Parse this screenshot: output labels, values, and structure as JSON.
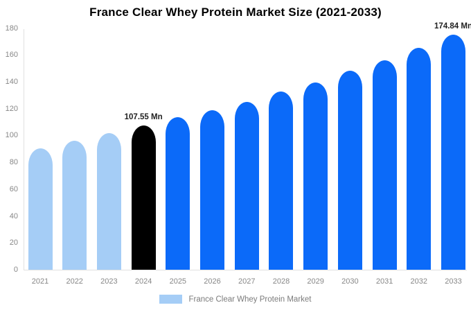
{
  "title": "France Clear Whey Protein Market Size (2021-2033)",
  "legend": {
    "label": "France Clear Whey Protein Market",
    "swatch_color": "#a5cdf6"
  },
  "colors": {
    "historical_bar": "#a5cdf6",
    "highlight_bar": "#000000",
    "forecast_bar": "#0b6af9",
    "axis_line": "#e0e0e0",
    "tick_text": "#878787",
    "annotation_text": "#1f1f1f"
  },
  "chart_data": {
    "type": "bar",
    "title": "France Clear Whey Protein Market Size (2021-2033)",
    "categories": [
      "2021",
      "2022",
      "2023",
      "2024",
      "2025",
      "2026",
      "2027",
      "2028",
      "2029",
      "2030",
      "2031",
      "2032",
      "2033"
    ],
    "series": [
      {
        "name": "France Clear Whey Protein Market",
        "unit": "Mn",
        "values": [
          90.5,
          96,
          101.5,
          107.55,
          113.5,
          119,
          125,
          132.5,
          139.5,
          148,
          156,
          165.5,
          174.84
        ]
      }
    ],
    "bar_colors": [
      "#a5cdf6",
      "#a5cdf6",
      "#a5cdf6",
      "#000000",
      "#0b6af9",
      "#0b6af9",
      "#0b6af9",
      "#0b6af9",
      "#0b6af9",
      "#0b6af9",
      "#0b6af9",
      "#0b6af9",
      "#0b6af9"
    ],
    "annotations": [
      {
        "category": "2024",
        "text": "107.55 Mn"
      },
      {
        "category": "2033",
        "text": "174.84 Mn"
      }
    ],
    "xlabel": "",
    "ylabel": "",
    "ylim": [
      0,
      180
    ],
    "yticks": [
      0,
      20,
      40,
      60,
      80,
      100,
      120,
      140,
      160,
      180
    ],
    "grid": false,
    "legend_position": "bottom"
  }
}
